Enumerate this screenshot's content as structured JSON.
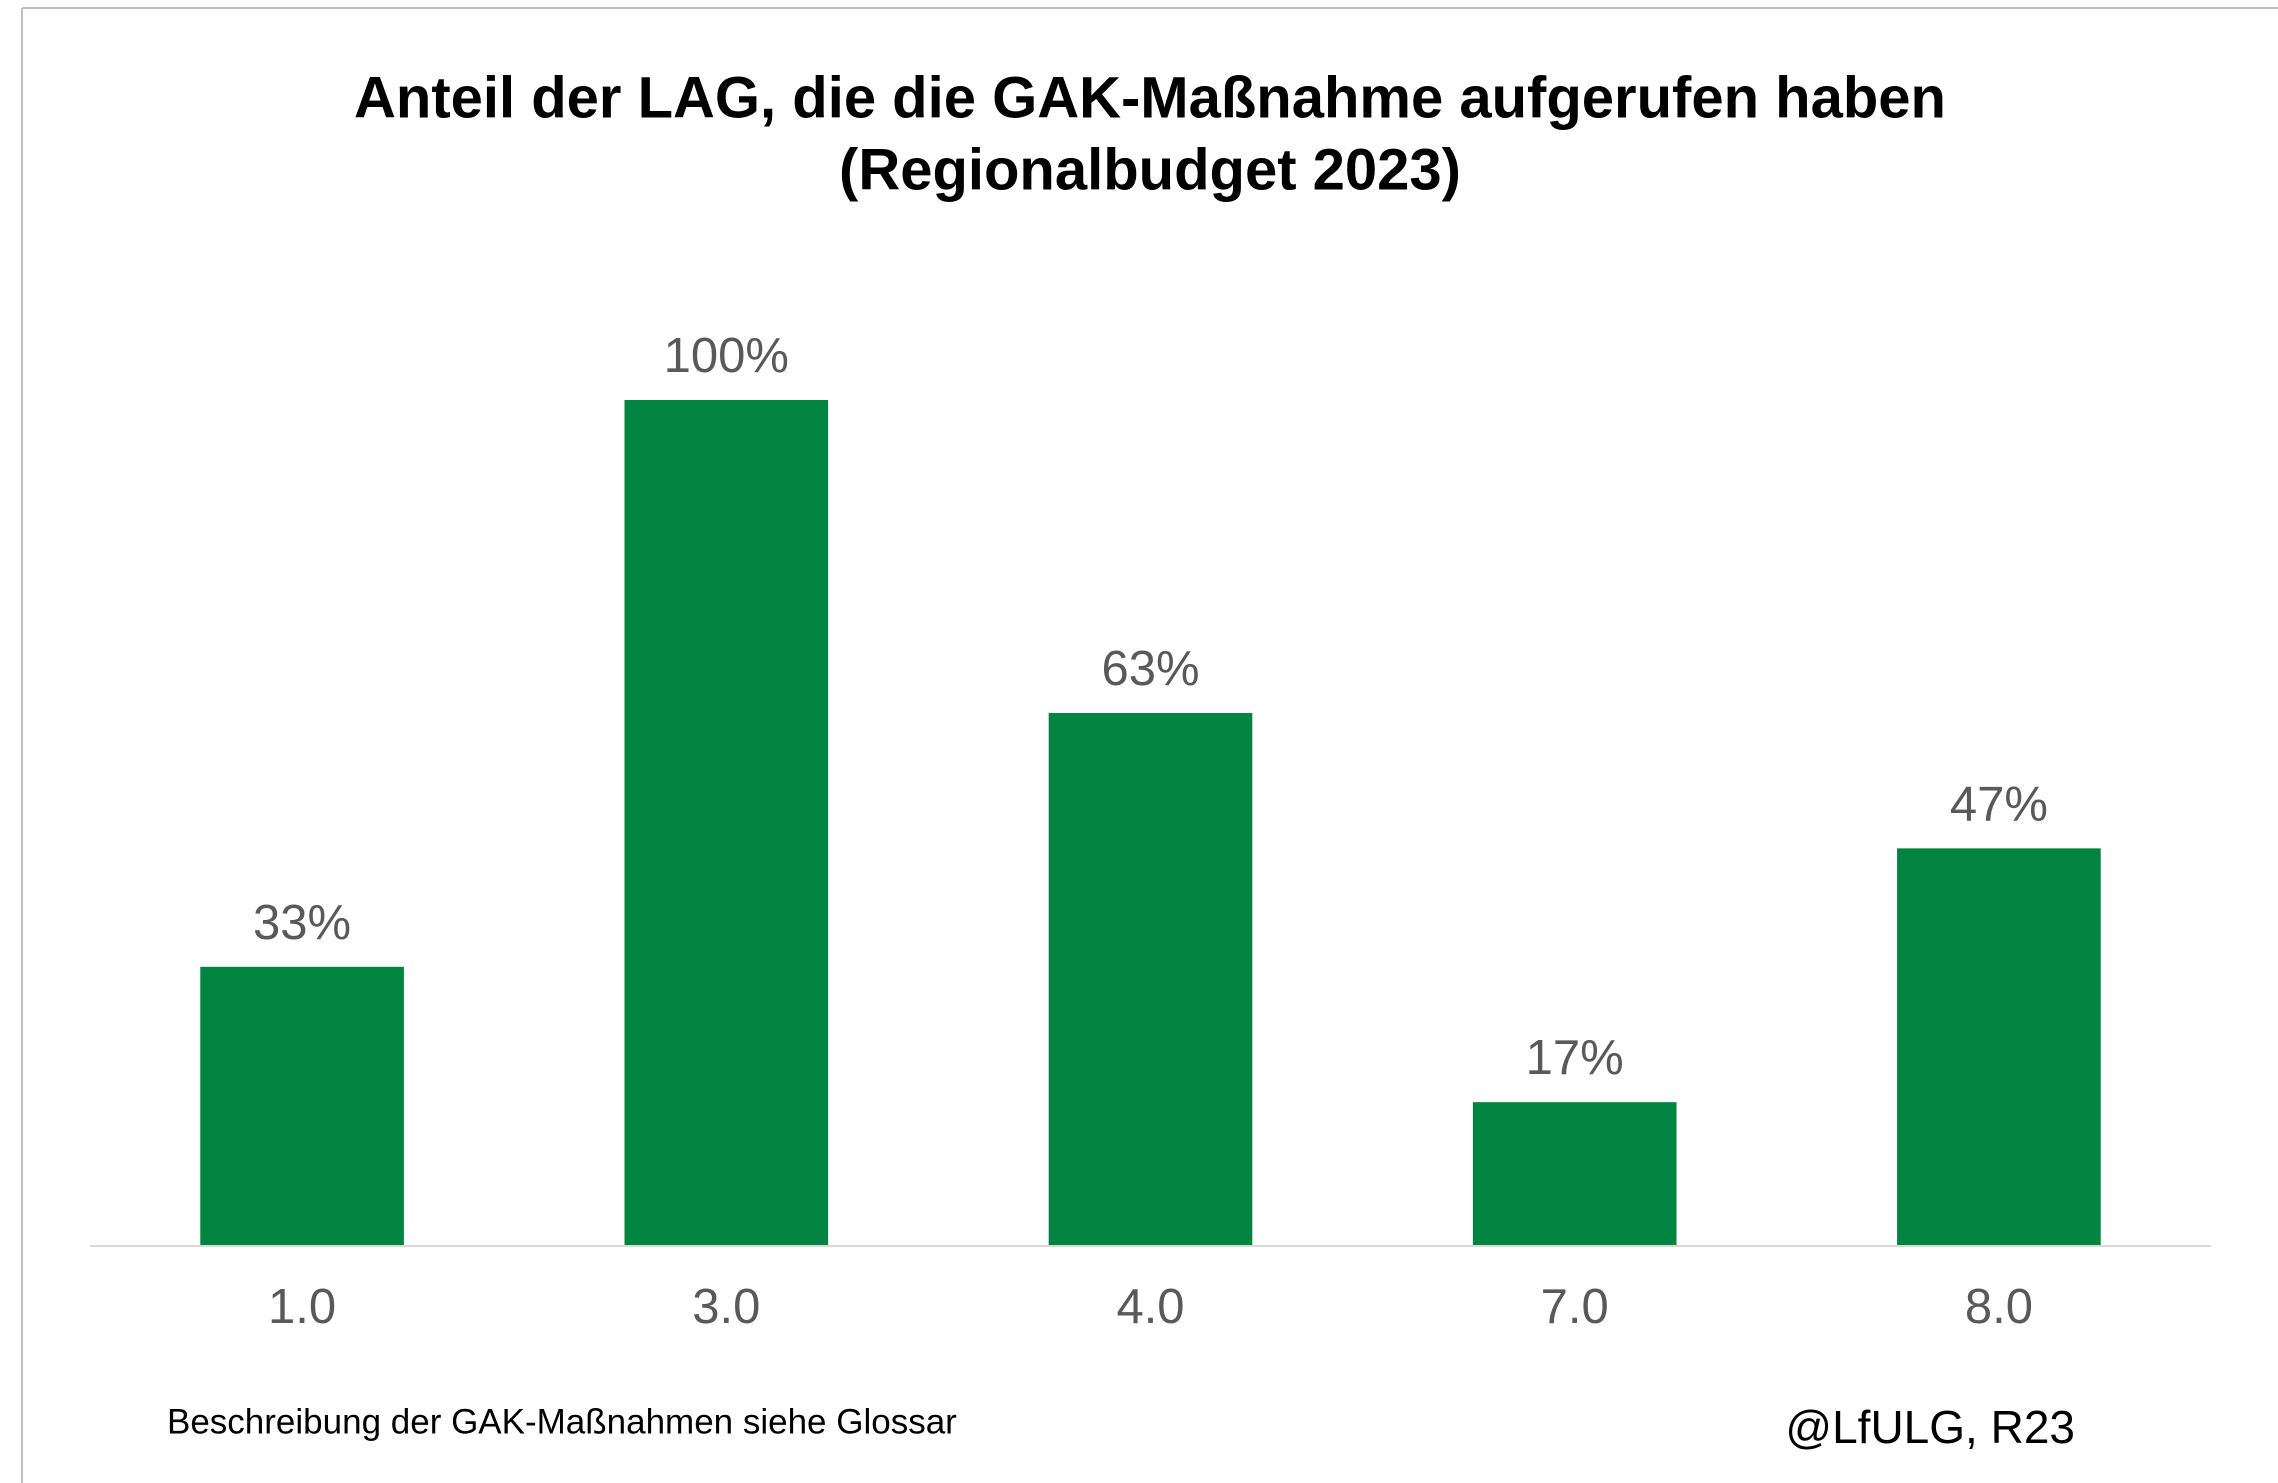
{
  "chart_data": {
    "type": "bar",
    "title": "Anteil der LAG, die die GAK-Maßnahme aufgerufen haben",
    "subtitle": "(Regionalbudget 2023)",
    "categories": [
      "1.0",
      "3.0",
      "4.0",
      "7.0",
      "8.0"
    ],
    "values": [
      33,
      100,
      63,
      17,
      47
    ],
    "value_labels": [
      "33%",
      "100%",
      "63%",
      "17%",
      "47%"
    ],
    "color": "#00843f",
    "ylim": [
      0,
      100
    ],
    "footnote": "Beschreibung der GAK-Maßnahmen siehe Glossar",
    "credit": "@LfULG, R23"
  }
}
